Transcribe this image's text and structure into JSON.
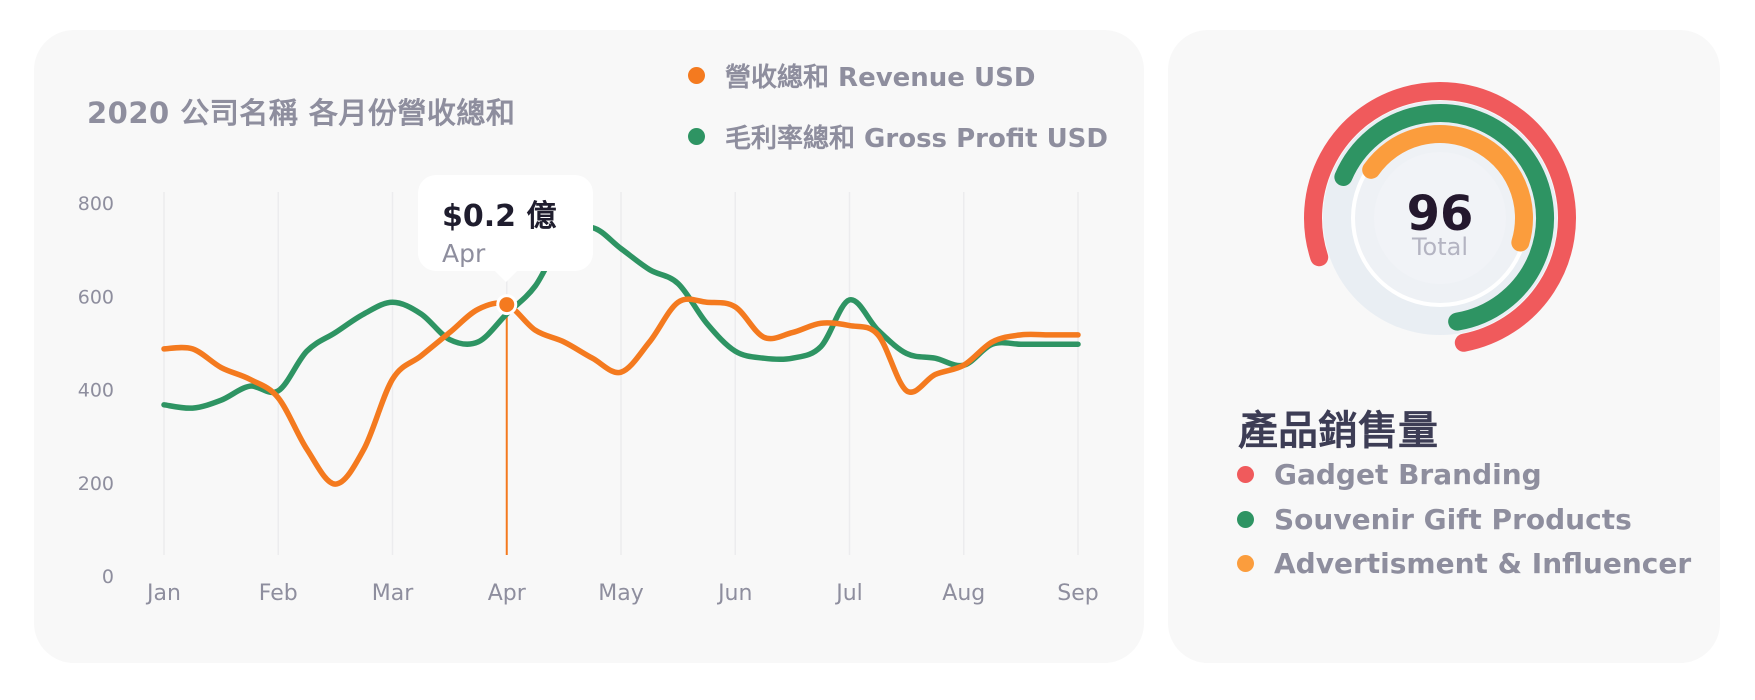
{
  "title": "2020 公司名稱 各月份營收總和",
  "legend": [
    {
      "label": "營收總和 Revenue USD",
      "color": "#f47a1f"
    },
    {
      "label": "毛利率總和 Gross Profit USD",
      "color": "#2e9463"
    }
  ],
  "tooltip": {
    "value": "$0.2 億",
    "label": "Apr"
  },
  "chart_data": [
    {
      "type": "line",
      "title": "2020 公司名稱 各月份營收總和",
      "categories": [
        "Jan",
        "Feb",
        "Mar",
        "Apr",
        "May",
        "Jun",
        "Jul",
        "Aug",
        "Sep"
      ],
      "x": [
        0,
        0.25,
        0.5,
        0.75,
        1,
        1.25,
        1.5,
        1.75,
        2,
        2.25,
        2.5,
        2.75,
        3,
        3.25,
        3.5,
        3.75,
        4,
        4.25,
        4.5,
        4.75,
        5,
        5.25,
        5.5,
        5.75,
        6,
        6.25,
        6.5,
        6.75,
        7,
        7.25,
        7.5,
        7.75,
        8
      ],
      "series": [
        {
          "name": "營收總和 Revenue USD",
          "color": "#f47a1f",
          "values": [
            485,
            485,
            445,
            420,
            380,
            270,
            195,
            270,
            420,
            470,
            520,
            570,
            580,
            525,
            500,
            465,
            435,
            500,
            585,
            585,
            575,
            510,
            520,
            540,
            535,
            515,
            395,
            430,
            450,
            500,
            515,
            515,
            515
          ]
        },
        {
          "name": "毛利率總和 Gross Profit USD",
          "color": "#2e9463",
          "values": [
            365,
            358,
            375,
            405,
            395,
            480,
            520,
            560,
            585,
            560,
            505,
            500,
            560,
            620,
            725,
            745,
            700,
            655,
            625,
            540,
            480,
            465,
            465,
            490,
            590,
            525,
            475,
            465,
            450,
            495,
            495,
            495,
            495
          ]
        }
      ],
      "xlabel": "",
      "ylabel": "",
      "ylim": [
        0,
        800
      ],
      "yticks": [
        0,
        200,
        400,
        600,
        800
      ],
      "highlight": {
        "category": "Apr",
        "value": 580
      },
      "grid": "vertical"
    },
    {
      "type": "pie",
      "title": "產品銷售量",
      "total": 96,
      "center_label": "Total",
      "slices": [
        {
          "name": "Gadget Branding",
          "value": 0.77,
          "color": "#f05a5c"
        },
        {
          "name": "Souvenir Gift Products",
          "value": 0.66,
          "color": "#2e9463"
        },
        {
          "name": "Advertisment & Influencer",
          "value": 0.45,
          "color": "#fb9d3d"
        }
      ]
    }
  ],
  "donut": {
    "total": "96",
    "label": "Total"
  },
  "products": {
    "title": "產品銷售量",
    "items": [
      {
        "label": "Gadget Branding",
        "color": "#f05a5c"
      },
      {
        "label": "Souvenir Gift Products",
        "color": "#2e9463"
      },
      {
        "label": "Advertisment & Influencer",
        "color": "#fb9d3d"
      }
    ]
  }
}
